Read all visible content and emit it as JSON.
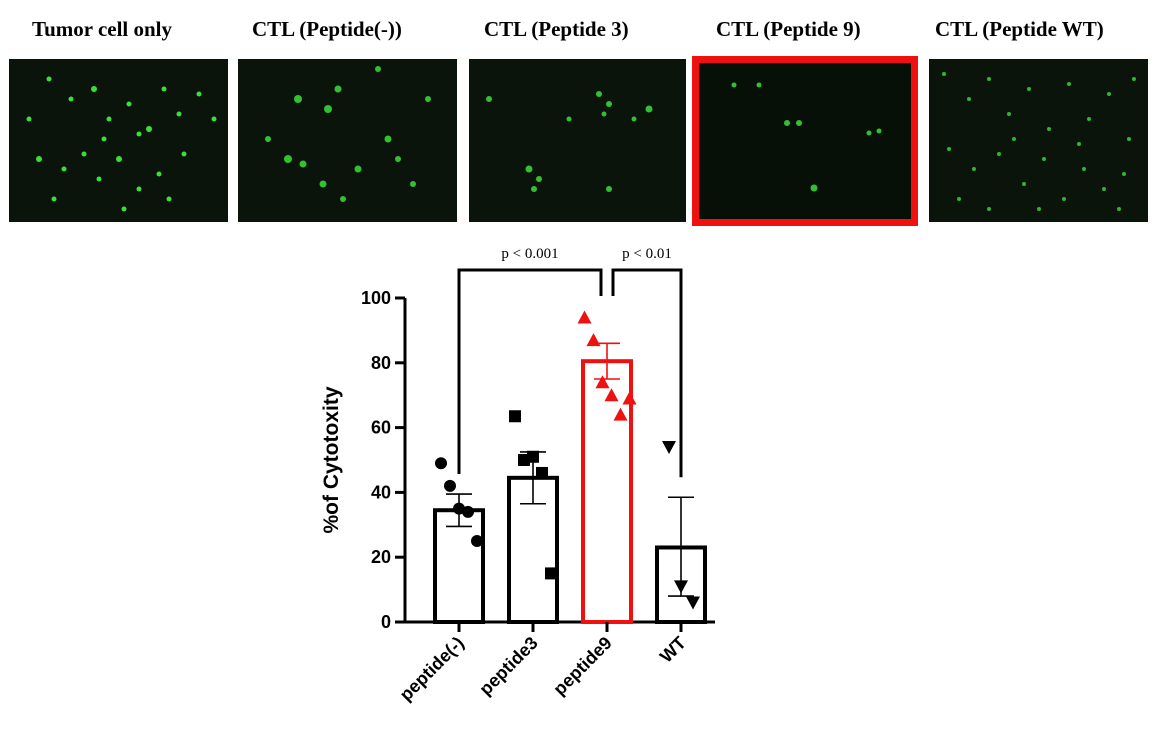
{
  "panels": [
    {
      "title": "Tumor cell only"
    },
    {
      "title": "CTL (Peptide(-))"
    },
    {
      "title": "CTL (Peptide 3)"
    },
    {
      "title": "CTL (Peptide 9)"
    },
    {
      "title": "CTL (Peptide WT)"
    }
  ],
  "colors": {
    "highlight": "#ef1010",
    "bar": "#000000",
    "cell": "#3adf3a",
    "micro_bg": "#0b140b"
  },
  "chart_data": {
    "type": "bar",
    "title": "",
    "xlabel": "",
    "ylabel": "%of Cytotoxity",
    "ylim": [
      0,
      100
    ],
    "yticks": [
      0,
      20,
      40,
      60,
      80,
      100
    ],
    "categories": [
      "peptide(-)",
      "peptide3",
      "peptide9",
      "WT"
    ],
    "values": [
      34.5,
      44.5,
      80.5,
      23
    ],
    "sem_low": [
      29.5,
      36.5,
      75,
      8
    ],
    "sem_high": [
      39.5,
      52.5,
      86,
      38.5
    ],
    "highlight_index": 2,
    "markers": [
      "circle",
      "square",
      "triangle-up",
      "triangle-down"
    ],
    "points": [
      [
        49,
        42,
        35,
        34,
        25
      ],
      [
        63.5,
        50,
        51,
        46,
        15
      ],
      [
        94,
        87,
        74,
        70,
        64,
        69
      ],
      [
        54,
        11,
        6
      ]
    ],
    "significance": [
      {
        "from": "peptide(-)",
        "to": "peptide9",
        "label": "p < 0.001"
      },
      {
        "from": "peptide9",
        "to": "WT",
        "label": "p < 0.01"
      }
    ]
  }
}
